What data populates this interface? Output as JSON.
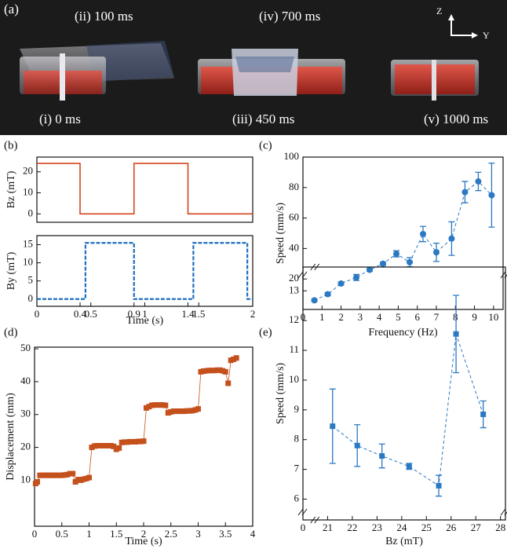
{
  "photo": {
    "panel": "(a)",
    "labels": [
      "(ii) 100 ms",
      "(iv) 700 ms",
      "(i) 0 ms",
      "(iii) 450 ms",
      "(v) 1000 ms"
    ],
    "axis_labels": [
      "Z",
      "Y"
    ]
  },
  "chart_data": [
    {
      "type": "line",
      "panel": "(b)",
      "y_label": "Bz (mT)",
      "color": "#d2461e",
      "line_style": "solid",
      "x": [
        0,
        0.4,
        0.4,
        0.9,
        0.9,
        1.4,
        1.4,
        2
      ],
      "values": [
        24,
        24,
        0,
        0,
        24,
        24,
        0,
        0
      ],
      "xlim": [
        0,
        2
      ],
      "ylim": [
        -4,
        27
      ],
      "yticks": [
        0,
        10,
        20
      ]
    },
    {
      "type": "line",
      "y_label": "By (mT)",
      "x_label": "Time (s)",
      "color": "#1f6fbf",
      "line_style": "dashed",
      "x": [
        0,
        0.45,
        0.45,
        0.9,
        0.9,
        1.45,
        1.45,
        1.95,
        1.95,
        2
      ],
      "values": [
        0,
        0,
        15.5,
        15.5,
        0,
        0,
        15.5,
        15.5,
        0,
        0
      ],
      "xlim": [
        0,
        2
      ],
      "xticks": [
        0,
        0.4,
        0.5,
        0.9,
        1,
        1.4,
        1.5,
        2
      ],
      "ylim": [
        -2,
        17.5
      ],
      "yticks": [
        0,
        5,
        10,
        15
      ]
    },
    {
      "type": "scatter",
      "panel": "(c)",
      "x_label": "Frequency (Hz)",
      "y_label": "Speed (mm/s)",
      "color": "#2b79c2",
      "marker": "circle",
      "line_style": "dashed",
      "x": [
        0.6,
        1.3,
        2.0,
        2.8,
        3.5,
        4.2,
        4.9,
        5.6,
        6.3,
        7.0,
        7.8,
        8.5,
        9.2,
        9.9
      ],
      "values": [
        6,
        10,
        17,
        21,
        26,
        30,
        36.5,
        31,
        49.5,
        37.5,
        46.5,
        77,
        84,
        75
      ],
      "errors": [
        0.8,
        1,
        1,
        2,
        1,
        1,
        2,
        3,
        5,
        6,
        11,
        7,
        6,
        21
      ],
      "xlim": [
        0,
        10.5
      ],
      "xticks": [
        0,
        1,
        2,
        3,
        4,
        5,
        6,
        7,
        8,
        9,
        10
      ],
      "ylim": [
        0,
        100
      ],
      "yticks": [
        20,
        40,
        60,
        80,
        100
      ]
    },
    {
      "type": "scatter",
      "panel": "(d)",
      "x_label": "Time (s)",
      "y_label": "Displacement (mm)",
      "color": "#c4501c",
      "marker": "square",
      "line_style": "solid",
      "x": [
        0.02,
        0.05,
        0.1,
        0.15,
        0.2,
        0.25,
        0.3,
        0.35,
        0.4,
        0.45,
        0.5,
        0.55,
        0.6,
        0.65,
        0.7,
        0.75,
        0.8,
        0.85,
        0.9,
        0.95,
        1.0,
        1.05,
        1.1,
        1.15,
        1.2,
        1.25,
        1.3,
        1.35,
        1.4,
        1.45,
        1.5,
        1.55,
        1.6,
        1.65,
        1.7,
        1.75,
        1.8,
        1.85,
        1.9,
        1.95,
        2.0,
        2.05,
        2.1,
        2.15,
        2.2,
        2.25,
        2.3,
        2.35,
        2.4,
        2.45,
        2.5,
        2.55,
        2.6,
        2.65,
        2.7,
        2.75,
        2.8,
        2.85,
        2.9,
        2.95,
        3.0,
        3.05,
        3.1,
        3.15,
        3.2,
        3.25,
        3.3,
        3.35,
        3.4,
        3.45,
        3.5,
        3.55,
        3.6,
        3.65,
        3.7
      ],
      "values": [
        9,
        9.5,
        11.5,
        11.5,
        11.5,
        11.5,
        11.5,
        11.5,
        11.5,
        11.5,
        11.5,
        11.6,
        11.7,
        12,
        12,
        9.5,
        10.2,
        10,
        10.3,
        10.5,
        10.8,
        20,
        20.4,
        20.5,
        20.5,
        20.5,
        20.5,
        20.5,
        20.5,
        20.3,
        19.4,
        19.8,
        21.5,
        21.6,
        21.6,
        21.7,
        21.7,
        21.7,
        21.8,
        21.8,
        21.9,
        32,
        32.4,
        32.8,
        32.9,
        32.9,
        32.9,
        32.9,
        32.8,
        30.5,
        30.8,
        31,
        31,
        31,
        31,
        31,
        31.1,
        31.1,
        31.2,
        31.4,
        31.7,
        43,
        43.2,
        43.3,
        43.4,
        43.4,
        43.4,
        43.5,
        43.5,
        43.3,
        43,
        39.5,
        46.5,
        46.8,
        47.2
      ],
      "xlim": [
        0,
        4
      ],
      "xticks": [
        0,
        0.5,
        1,
        1.5,
        2,
        2.5,
        3,
        3.5,
        4
      ],
      "ylim": [
        -4,
        50.5
      ],
      "yticks": [
        10,
        20,
        30,
        40,
        50
      ]
    },
    {
      "type": "scatter",
      "panel": "(e)",
      "x_label": "Bz (mT)",
      "y_label": "Speed (mm/s)",
      "color": "#2b79c2",
      "marker": "square",
      "line_style": "dashed",
      "axis_break": true,
      "x": [
        21.2,
        22.2,
        23.2,
        24.3,
        25.5,
        26.2,
        27.3
      ],
      "values": [
        8.45,
        7.8,
        7.45,
        7.1,
        6.45,
        11.55,
        8.85
      ],
      "errors": [
        1.25,
        0.7,
        0.4,
        0.1,
        0.35,
        1.3,
        0.45
      ],
      "xlim": [
        0,
        28.2
      ],
      "xticks": [
        0,
        21,
        22,
        23,
        24,
        25,
        26,
        27,
        28
      ],
      "ylim": [
        5.3,
        13.8
      ],
      "yticks": [
        6,
        7,
        8,
        9,
        10,
        11,
        12,
        13
      ]
    }
  ]
}
